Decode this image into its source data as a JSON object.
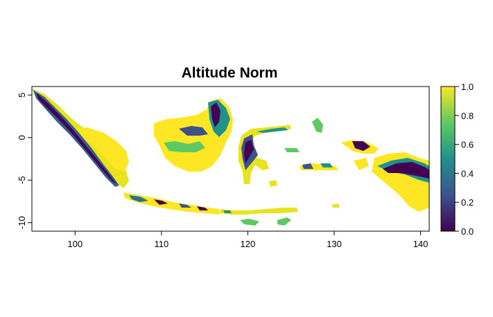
{
  "title": "Altitude Norm",
  "x_axis": {
    "ticks": [
      "100",
      "110",
      "120",
      "130",
      "140"
    ],
    "values": [
      100,
      110,
      120,
      130,
      140
    ],
    "range": [
      95,
      141
    ]
  },
  "y_axis": {
    "ticks": [
      "5",
      "0",
      "-5",
      "-10"
    ],
    "values": [
      5,
      0,
      -5,
      -10
    ],
    "range": [
      -11,
      6
    ]
  },
  "legend": {
    "ticks": [
      "1.0",
      "0.8",
      "0.6",
      "0.4",
      "0.2",
      "0.0"
    ],
    "values": [
      1.0,
      0.8,
      0.6,
      0.4,
      0.2,
      0.0
    ],
    "colormap": "viridis",
    "stops": [
      "#440154",
      "#3b528b",
      "#21918c",
      "#5ec962",
      "#fde725"
    ]
  },
  "colors": {
    "low": "#440154",
    "mid": "#21918c",
    "high": "#fde725"
  }
}
